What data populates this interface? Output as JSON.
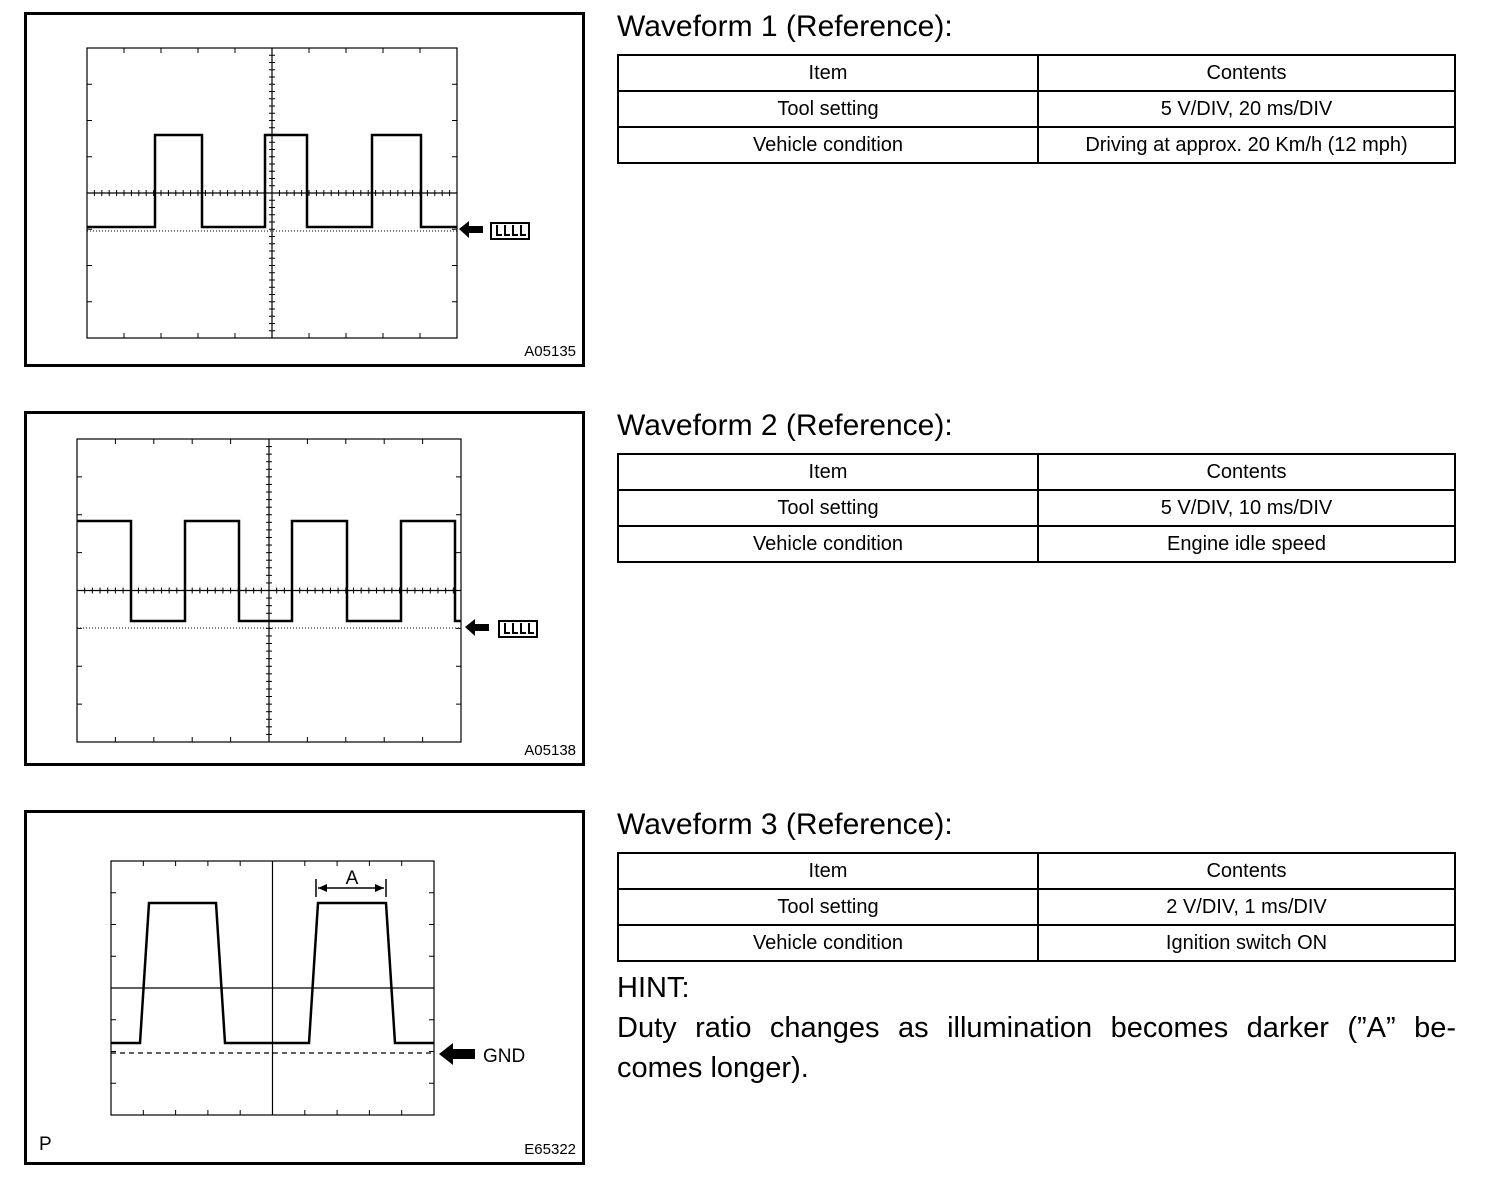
{
  "waveforms": [
    {
      "title": "Waveform 1 (Reference):",
      "code": "A05135",
      "ground_label": "",
      "table": {
        "header": [
          "Item",
          "Contents"
        ],
        "rows": [
          [
            "Tool setting",
            "5 V/DIV, 20 ms/DIV"
          ],
          [
            "Vehicle condition",
            "Driving at approx. 20 Km/h (12 mph)"
          ]
        ]
      }
    },
    {
      "title": "Waveform 2 (Reference):",
      "code": "A05138",
      "ground_label": "",
      "table": {
        "header": [
          "Item",
          "Contents"
        ],
        "rows": [
          [
            "Tool setting",
            "5 V/DIV, 10 ms/DIV"
          ],
          [
            "Vehicle condition",
            "Engine idle speed"
          ]
        ]
      }
    },
    {
      "title": "Waveform 3 (Reference):",
      "code": "E65322",
      "letter": "P",
      "ground_label": "GND",
      "pulse_label": "A",
      "table": {
        "header": [
          "Item",
          "Contents"
        ],
        "rows": [
          [
            "Tool setting",
            "2 V/DIV, 1 ms/DIV"
          ],
          [
            "Vehicle condition",
            "Ignition switch ON"
          ]
        ]
      }
    }
  ],
  "hint": {
    "label": "HINT:",
    "text": "Duty ratio changes as illumination becomes darker (”A” be- comes longer)."
  }
}
